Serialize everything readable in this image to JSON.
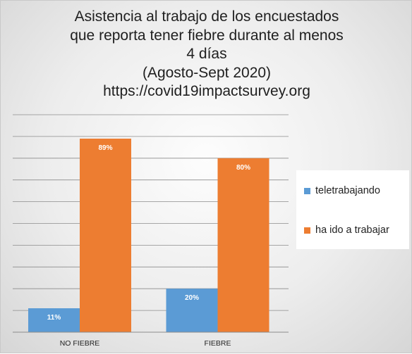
{
  "chart_data": {
    "type": "bar",
    "title_lines": [
      "Asistencia al trabajo de los encuestados",
      "que reporta tener fiebre durante al menos",
      "4 días",
      "(Agosto-Sept 2020)",
      "https://covid19impactsurvey.org"
    ],
    "categories": [
      "NO FIEBRE",
      "FIEBRE"
    ],
    "series": [
      {
        "name": "teletrabajando",
        "values": [
          11,
          20
        ],
        "labels": [
          "11%",
          "20%"
        ],
        "color": "#5b9bd5"
      },
      {
        "name": "ha ido a trabajar",
        "values": [
          89,
          80
        ],
        "labels": [
          "89%",
          "80%"
        ],
        "color": "#ed7d31"
      }
    ],
    "ylim": [
      0,
      100
    ],
    "gridlines": true,
    "legend_position": "right",
    "xlabel": "",
    "ylabel": ""
  }
}
